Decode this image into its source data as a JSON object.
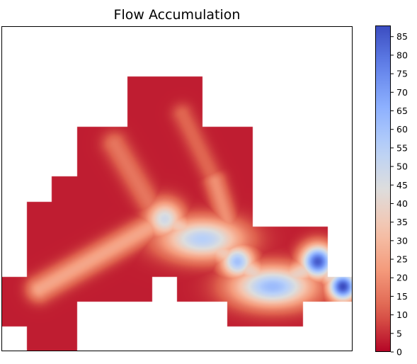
{
  "chart_data": {
    "type": "heatmap",
    "title": "Flow Accumulation",
    "xlabel": "",
    "ylabel": "",
    "axis_ticks": "off",
    "grid": false,
    "colormap": "coolwarm_r",
    "colorbar": {
      "min": 0,
      "max": 88,
      "ticks": [
        0,
        5,
        10,
        15,
        20,
        25,
        30,
        35,
        40,
        45,
        50,
        55,
        60,
        65,
        70,
        75,
        80,
        85
      ],
      "tick_labels": [
        "0",
        "5",
        "10",
        "15",
        "20",
        "25",
        "30",
        "35",
        "40",
        "45",
        "50",
        "55",
        "60",
        "65",
        "70",
        "75",
        "80",
        "85"
      ],
      "placement": "right"
    },
    "grid_size": {
      "cols": 14,
      "rows": 13
    },
    "no_data": "white",
    "mask": [
      "00000000000000",
      "00000000000000",
      "00000111000000",
      "00000111000000",
      "00011111110000",
      "00011111110000",
      "00111111110000",
      "01111111110000",
      "01111111111110",
      "01111111111110",
      "11111101111111",
      "11100000011100",
      "01100000000000"
    ],
    "background_value": 3,
    "hotspots": [
      {
        "x": 6.5,
        "y": 7.7,
        "value": 48,
        "spread": 0.5
      },
      {
        "x": 8.0,
        "y": 8.5,
        "value": 55,
        "spread": 0.55,
        "shape": "wide"
      },
      {
        "x": 9.4,
        "y": 9.4,
        "value": 60,
        "spread": 0.45
      },
      {
        "x": 10.8,
        "y": 10.4,
        "value": 62,
        "spread": 0.55,
        "shape": "wide"
      },
      {
        "x": 12.6,
        "y": 9.4,
        "value": 85,
        "spread": 0.45
      },
      {
        "x": 13.6,
        "y": 10.4,
        "value": 88,
        "spread": 0.4
      }
    ],
    "channels": [
      {
        "from": [
          1.5,
          10.5
        ],
        "to": [
          6.5,
          7.7
        ],
        "value": 25,
        "width": 0.7
      },
      {
        "from": [
          4.5,
          4.7
        ],
        "to": [
          6.2,
          7.6
        ],
        "value": 15,
        "width": 0.7
      },
      {
        "from": [
          7.2,
          3.5
        ],
        "to": [
          8.5,
          6.2
        ],
        "value": 12,
        "width": 0.6
      },
      {
        "from": [
          8.5,
          6.2
        ],
        "to": [
          9.3,
          8.8
        ],
        "value": 20,
        "width": 0.6
      },
      {
        "from": [
          6.5,
          7.7
        ],
        "to": [
          8.0,
          8.5
        ],
        "value": 35,
        "width": 0.7
      },
      {
        "from": [
          8.0,
          8.5
        ],
        "to": [
          9.4,
          9.4
        ],
        "value": 35,
        "width": 0.7
      },
      {
        "from": [
          9.4,
          9.4
        ],
        "to": [
          10.8,
          10.4
        ],
        "value": 38,
        "width": 0.7
      },
      {
        "from": [
          10.8,
          10.4
        ],
        "to": [
          12.4,
          9.6
        ],
        "value": 38,
        "width": 0.7
      },
      {
        "from": [
          12.6,
          9.4
        ],
        "to": [
          13.6,
          10.4
        ],
        "value": 40,
        "width": 0.7
      }
    ]
  }
}
